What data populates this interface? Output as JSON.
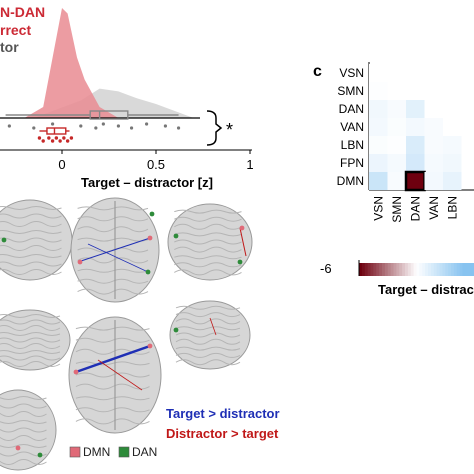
{
  "panel_a": {
    "legend_title": "N-DAN",
    "legend_correct": "rrect",
    "legend_incorrect": "tor",
    "xlabel": "Target – distractor [z]",
    "xticks": [
      "0",
      "0.5",
      "1"
    ],
    "significance": "*",
    "colors": {
      "correct": "#d9404a",
      "incorrect": "#9a9a9a",
      "correct_fill": "#e98b92",
      "incorrect_fill": "#cfcfcf"
    }
  },
  "panel_c": {
    "label": "c",
    "row_labels": [
      "VSN",
      "SMN",
      "DAN",
      "VAN",
      "LBN",
      "FPN",
      "DMN"
    ],
    "col_labels": [
      "VSN",
      "SMN",
      "DAN",
      "VAN",
      "LBN"
    ],
    "colorbar_min": "-6",
    "colorbar_label": "Target – distrac"
  },
  "panel_b": {
    "legend_target": "Target > distractor",
    "legend_distractor": "Distractor > target",
    "legend_dmn": "DMN",
    "legend_dan": "DAN",
    "colors": {
      "target": "#1f2fb5",
      "distractor": "#c01818",
      "dmn": "#e06a78",
      "dan": "#2e8b3a"
    }
  },
  "chart_data": [
    {
      "type": "area",
      "title": "",
      "xlabel": "Target – distractor [z]",
      "xlim": [
        -0.4,
        1.0
      ],
      "series": [
        {
          "name": "rrect",
          "x": [
            -0.2,
            -0.1,
            -0.05,
            0.0,
            0.03,
            0.08,
            0.12,
            0.2,
            0.3
          ],
          "y": [
            0.0,
            0.1,
            0.55,
            1.0,
            0.95,
            0.55,
            0.35,
            0.1,
            0.0
          ]
        },
        {
          "name": "tor",
          "x": [
            -0.15,
            0.0,
            0.1,
            0.2,
            0.3,
            0.4,
            0.5,
            0.6,
            0.7
          ],
          "y": [
            0.0,
            0.15,
            0.25,
            0.42,
            0.38,
            0.28,
            0.2,
            0.1,
            0.0
          ]
        }
      ],
      "boxplot_gray": {
        "whisker_low": -0.3,
        "q1": 0.15,
        "median": 0.2,
        "q3": 0.35,
        "whisker_high": 0.62
      },
      "boxplot_red": {
        "whisker_low": -0.12,
        "q1": -0.08,
        "median": -0.04,
        "q3": 0.02,
        "whisker_high": 0.04
      },
      "points_gray": [
        -0.35,
        -0.28,
        -0.15,
        -0.05,
        0.1,
        0.18,
        0.22,
        0.3,
        0.37,
        0.45,
        0.55,
        0.62
      ],
      "points_red": [
        -0.12,
        -0.1,
        -0.07,
        -0.05,
        -0.03,
        -0.01,
        0.01,
        0.03,
        0.05
      ]
    },
    {
      "type": "heatmap",
      "rows": [
        "VSN",
        "SMN",
        "DAN",
        "VAN",
        "LBN",
        "FPN",
        "DMN"
      ],
      "cols": [
        "VSN",
        "SMN",
        "DAN",
        "VAN",
        "LBN"
      ],
      "values": [
        [
          0,
          0,
          0,
          0,
          0
        ],
        [
          0.1,
          0,
          0,
          0,
          0
        ],
        [
          0.6,
          0.3,
          1.2,
          0,
          0
        ],
        [
          0.5,
          0.2,
          0.5,
          0.3,
          0
        ],
        [
          0.2,
          0.1,
          1.6,
          0.3,
          0.4
        ],
        [
          0.8,
          0.4,
          1.8,
          0.4,
          0.6
        ],
        [
          2.2,
          0.3,
          -6.0,
          0.5,
          1.0
        ]
      ],
      "clim": [
        -6,
        6
      ],
      "highlight": {
        "row": "DMN",
        "col": "DAN"
      }
    }
  ]
}
